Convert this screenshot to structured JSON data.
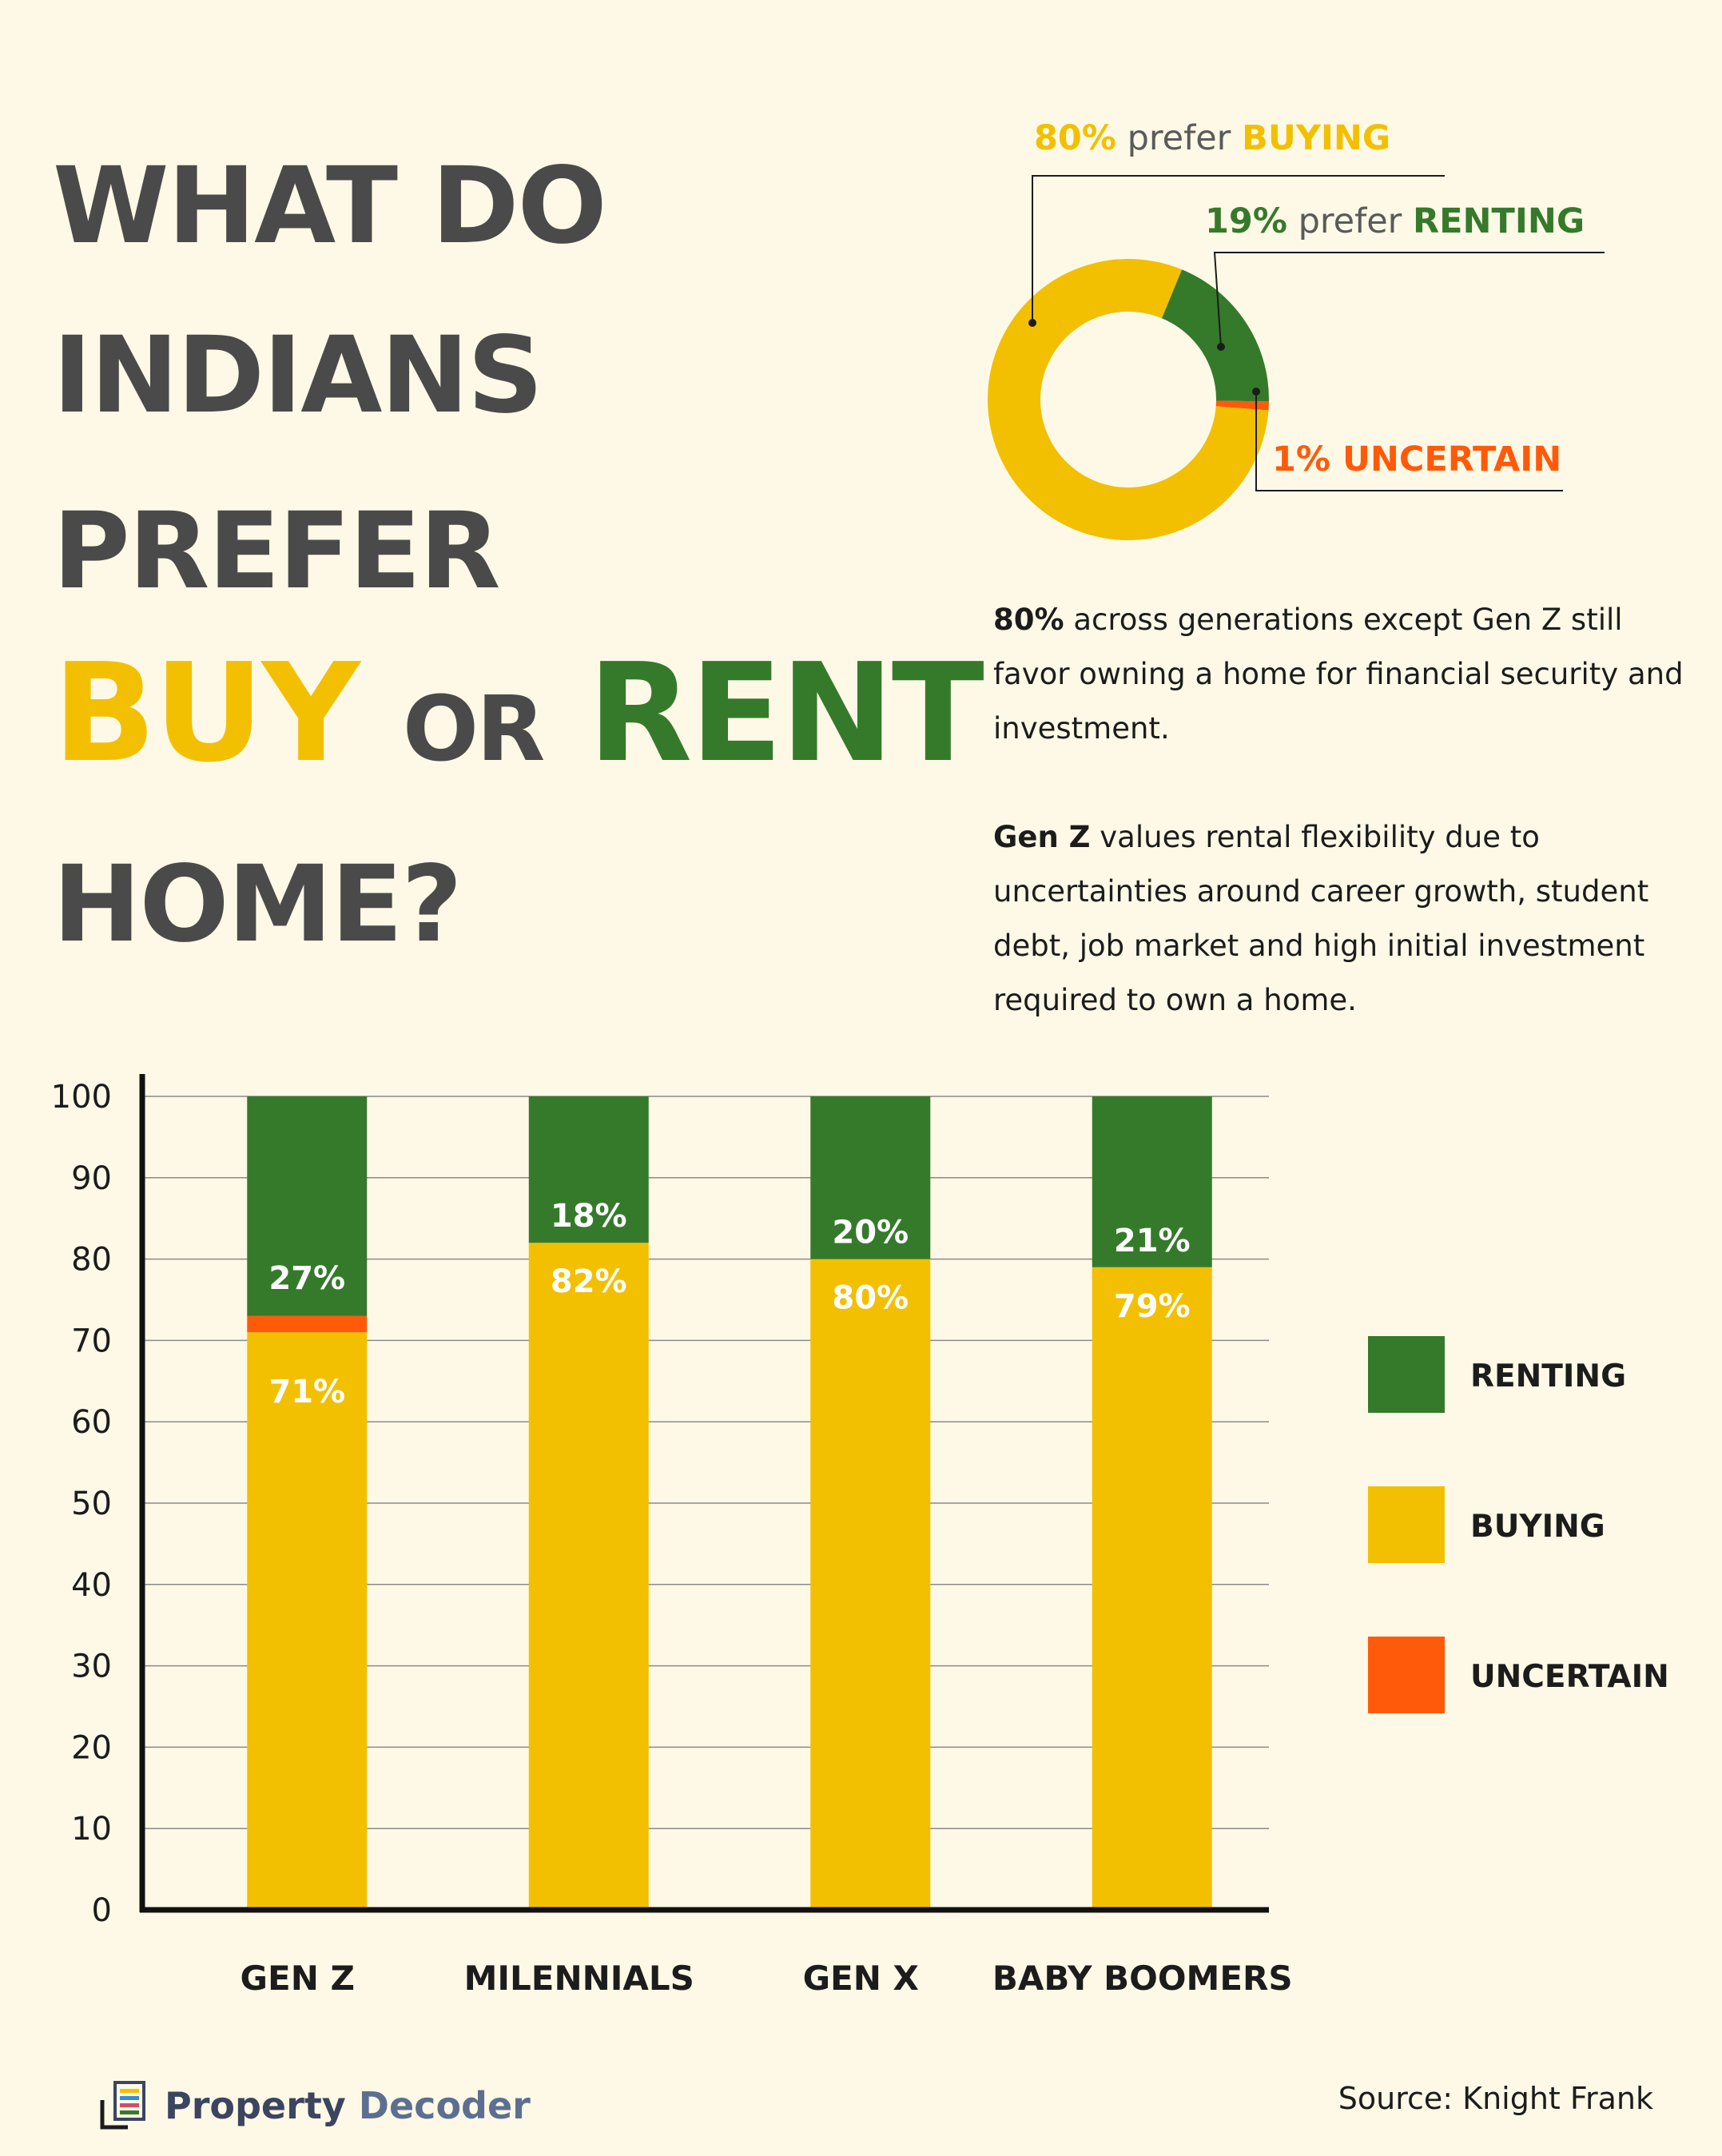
{
  "title": {
    "line1": "WHAT DO",
    "line2": "INDIANS",
    "line3": "PREFER",
    "buy": "BUY",
    "or": "OR",
    "rent": "RENT",
    "line5": "HOME?"
  },
  "donut": {
    "buying_pct": "80%",
    "buying_mid": "prefer",
    "buying_word": "BUYING",
    "renting_pct": "19%",
    "renting_mid": "prefer",
    "renting_word": "RENTING",
    "uncertain_label": "1% UNCERTAIN",
    "values": [
      80,
      19,
      1
    ],
    "colors": [
      "#f2c000",
      "#357a2b",
      "#ff5a0a"
    ]
  },
  "paragraphs": {
    "p1_bold": "80%",
    "p1_rest": " across generations except Gen Z still favor owning a home for financial security and investment.",
    "p2_bold": "Gen Z",
    "p2_rest": " values rental flexibility due to uncertainties around career growth, student debt, job market and high initial investment required to own a home."
  },
  "legend": {
    "renting": "RENTING",
    "buying": "BUYING",
    "uncertain": "UNCERTAIN"
  },
  "colors": {
    "background": "#fef9e6",
    "buying": "#f2c000",
    "renting": "#357a2b",
    "uncertain": "#ff5a0a",
    "title_gray": "#4a4a4a"
  },
  "chart_data": {
    "type": "bar",
    "stacked": true,
    "categories": [
      "GEN Z",
      "MILENNIALS",
      "GEN X",
      "BABY BOOMERS"
    ],
    "series": [
      {
        "name": "BUYING",
        "values": [
          71,
          82,
          80,
          79
        ],
        "labels": [
          "71%",
          "82%",
          "80%",
          "79%"
        ],
        "color": "#f2c000"
      },
      {
        "name": "UNCERTAIN",
        "values": [
          2,
          0,
          0,
          0
        ],
        "labels": [
          "",
          "",
          "",
          ""
        ],
        "color": "#ff5a0a"
      },
      {
        "name": "RENTING",
        "values": [
          27,
          18,
          20,
          21
        ],
        "labels": [
          "27%",
          "18%",
          "20%",
          "21%"
        ],
        "color": "#357a2b"
      }
    ],
    "ylim": [
      0,
      100
    ],
    "yticks": [
      0,
      10,
      20,
      30,
      40,
      50,
      60,
      70,
      80,
      90,
      100
    ],
    "grid": true,
    "legend_position": "right"
  },
  "footer": {
    "brand_part1": "Property",
    "brand_part2": "Decoder",
    "source": "Source: Knight Frank"
  }
}
